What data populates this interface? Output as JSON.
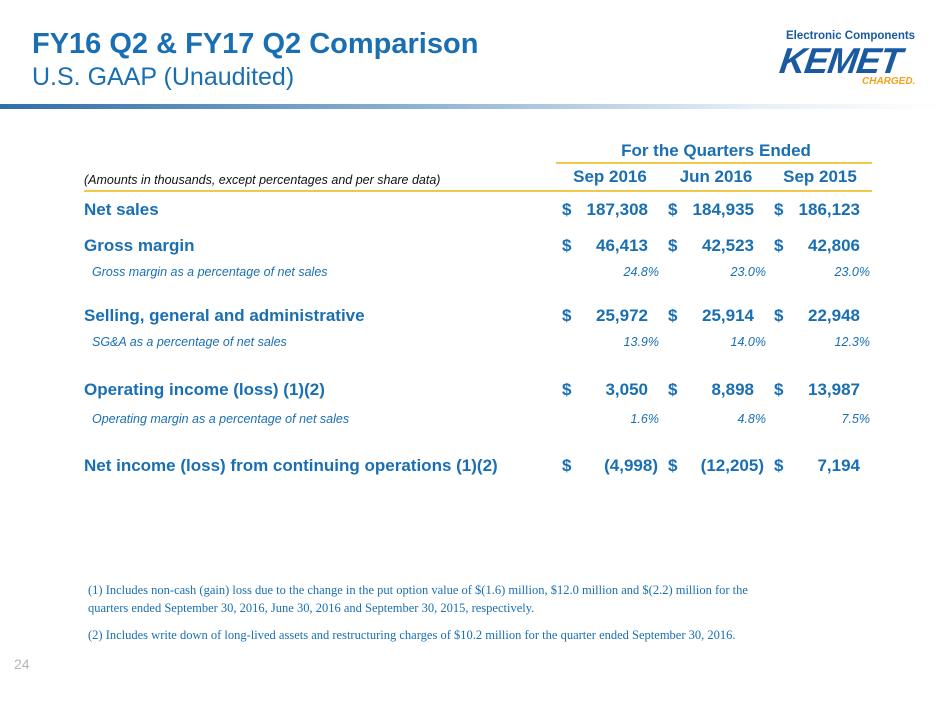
{
  "header": {
    "title": "FY16 Q2 & FY17 Q2 Comparison",
    "subtitle": "U.S. GAAP (Unaudited)"
  },
  "logo": {
    "tagline": "Electronic Components",
    "wordmark": "KEMET",
    "charged": "CHARGED."
  },
  "table": {
    "group_header": "For the Quarters Ended",
    "note": "(Amounts in thousands, except percentages and per share data)",
    "columns": [
      "Sep 2016",
      "Jun 2016",
      "Sep 2015"
    ],
    "currency_symbol": "$",
    "rows": [
      {
        "label": "Net sales",
        "values": [
          "187,308",
          "184,935",
          "186,123"
        ]
      },
      {
        "label": "Gross margin",
        "values": [
          "46,413",
          "42,523",
          "42,806"
        ]
      },
      {
        "label": "Gross margin as a percentage of net sales",
        "values": [
          "24.8%",
          "23.0%",
          "23.0%"
        ]
      },
      {
        "label": "Selling, general and administrative",
        "values": [
          "25,972",
          "25,914",
          "22,948"
        ]
      },
      {
        "label": "SG&A as a percentage of net sales",
        "values": [
          "13.9%",
          "14.0%",
          "12.3%"
        ]
      },
      {
        "label": "Operating income (loss) (1)(2)",
        "values": [
          "3,050",
          "8,898",
          "13,987"
        ]
      },
      {
        "label": "Operating margin as a percentage of net sales",
        "values": [
          "1.6%",
          "4.8%",
          "7.5%"
        ]
      },
      {
        "label": "Net income (loss) from continuing operations (1)(2)",
        "values": [
          "(4,998)",
          "(12,205)",
          "7,194"
        ]
      }
    ]
  },
  "footnotes": [
    "(1) Includes non-cash (gain) loss due to the change in the put option value of $(1.6) million,  $12.0 million and $(2.2) million for the quarters ended September 30, 2016, June 30, 2016 and September 30, 2015, respectively.",
    "(2) Includes write down of long-lived assets and restructuring charges of $10.2 million for the quarter ended September 30, 2016."
  ],
  "page_number": "24"
}
